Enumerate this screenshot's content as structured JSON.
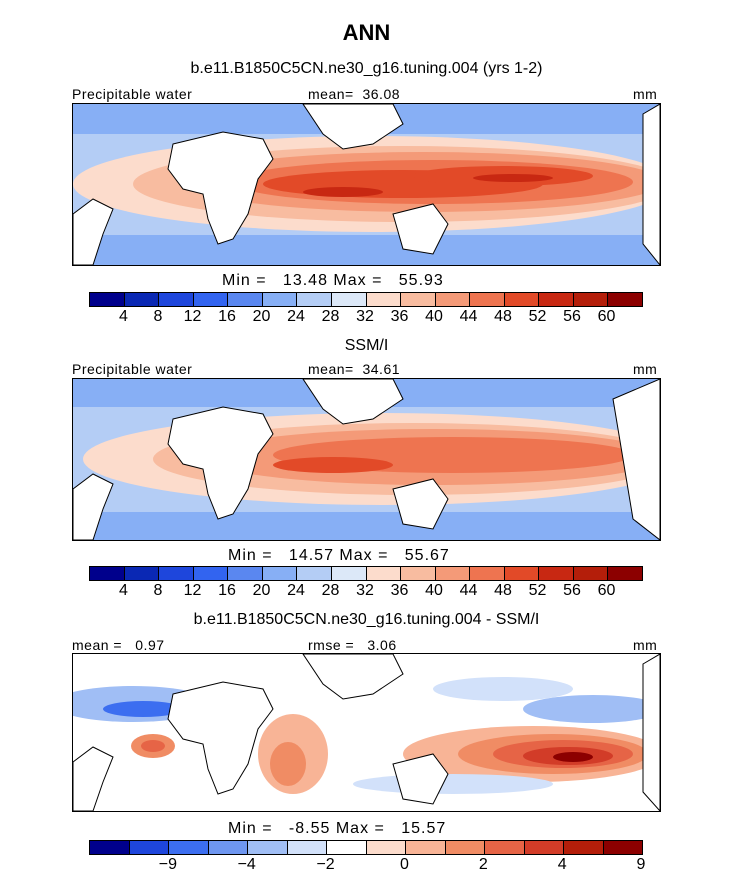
{
  "title": "ANN",
  "panel1": {
    "subtitle": "b.e11.B1850C5CN.ne30_g16.tuning.004 (yrs 1-2)",
    "left_label": "Precipitable water",
    "mean_label": "mean=",
    "mean_value": "36.08",
    "units": "mm",
    "min_label": "Min =",
    "min_value": "13.48",
    "max_label": "Max =",
    "max_value": "55.93",
    "ticks": [
      "4",
      "8",
      "12",
      "16",
      "20",
      "24",
      "28",
      "32",
      "36",
      "40",
      "44",
      "48",
      "52",
      "56",
      "60"
    ]
  },
  "panel2": {
    "subtitle": "SSM/I",
    "left_label": "Precipitable water",
    "mean_label": "mean=",
    "mean_value": "34.61",
    "units": "mm",
    "min_label": "Min =",
    "min_value": "14.57",
    "max_label": "Max =",
    "max_value": "55.67",
    "ticks": [
      "4",
      "8",
      "12",
      "16",
      "20",
      "24",
      "28",
      "32",
      "36",
      "40",
      "44",
      "48",
      "52",
      "56",
      "60"
    ]
  },
  "panel3": {
    "subtitle": "b.e11.B1850C5CN.ne30_g16.tuning.004 - SSM/I",
    "mean_label": "mean =",
    "mean_value": "0.97",
    "rmse_label": "rmse =",
    "rmse_value": "3.06",
    "units": "mm",
    "min_label": "Min =",
    "min_value": "-8.55",
    "max_label": "Max =",
    "max_value": "15.57",
    "ticks": [
      "-9",
      "-4",
      "-2",
      "0",
      "2",
      "4",
      "9"
    ]
  },
  "colors": {
    "pwat_scale": [
      "#00008c",
      "#0a28b4",
      "#1e46dc",
      "#3264f0",
      "#5a87f0",
      "#87aff5",
      "#b4cdf5",
      "#dce8f8",
      "#fcdccc",
      "#f8bca0",
      "#f49a78",
      "#ee7450",
      "#e24a28",
      "#c82812",
      "#b41e0a",
      "#8c0000"
    ],
    "diff_scale": [
      "#00008c",
      "#1e46dc",
      "#3c6ef0",
      "#6e96f0",
      "#a0bef5",
      "#d2e1fa",
      "#ffffff",
      "#fcdccc",
      "#f8b496",
      "#f08c64",
      "#e66446",
      "#d23c28",
      "#b41e0a",
      "#8c0000"
    ]
  }
}
